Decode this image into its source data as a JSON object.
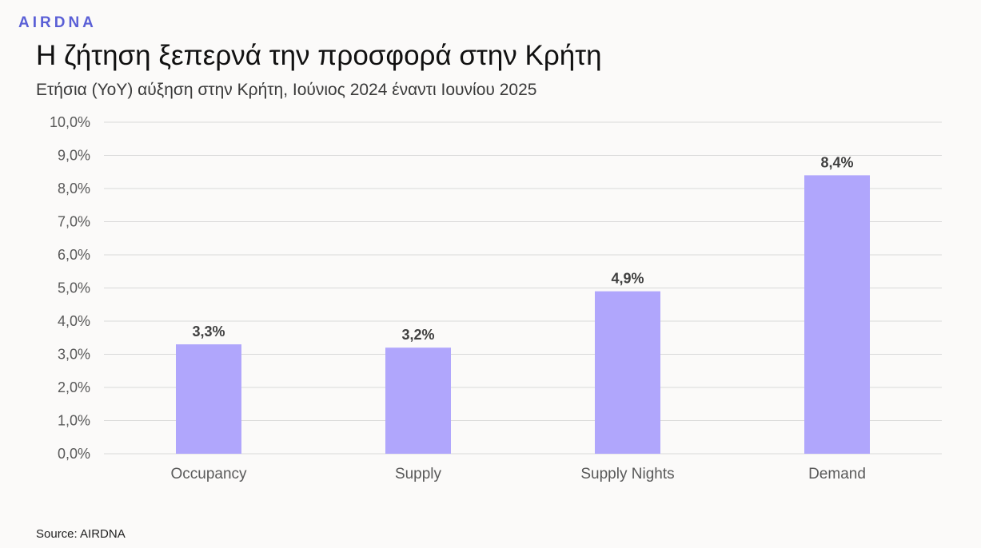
{
  "brand": {
    "logo_text": "AIRDNA"
  },
  "title": "Η ζήτηση ξεπερνά την προσφορά στην Κρήτη",
  "subtitle": "Ετήσια (YoY) αύξηση στην Κρήτη, Ιούνιος 2024 έναντι Ιουνίου 2025",
  "source": "Source: AIRDNA",
  "colors": {
    "bar": "#b0a6fc",
    "grid": "#d9d9d9",
    "accent": "#5a5fd6"
  },
  "chart_data": {
    "type": "bar",
    "categories": [
      "Occupancy",
      "Supply",
      "Supply Nights",
      "Demand"
    ],
    "values": [
      3.3,
      3.2,
      4.9,
      8.4
    ],
    "data_labels": [
      "3,3%",
      "3,2%",
      "4,9%",
      "8,4%"
    ],
    "ylim": [
      0,
      10
    ],
    "yticks": [
      0,
      1,
      2,
      3,
      4,
      5,
      6,
      7,
      8,
      9,
      10
    ],
    "ytick_labels": [
      "0,0%",
      "1,0%",
      "2,0%",
      "3,0%",
      "4,0%",
      "5,0%",
      "6,0%",
      "7,0%",
      "8,0%",
      "9,0%",
      "10,0%"
    ],
    "xlabel": "",
    "ylabel": "",
    "grid": true,
    "legend": "none"
  }
}
